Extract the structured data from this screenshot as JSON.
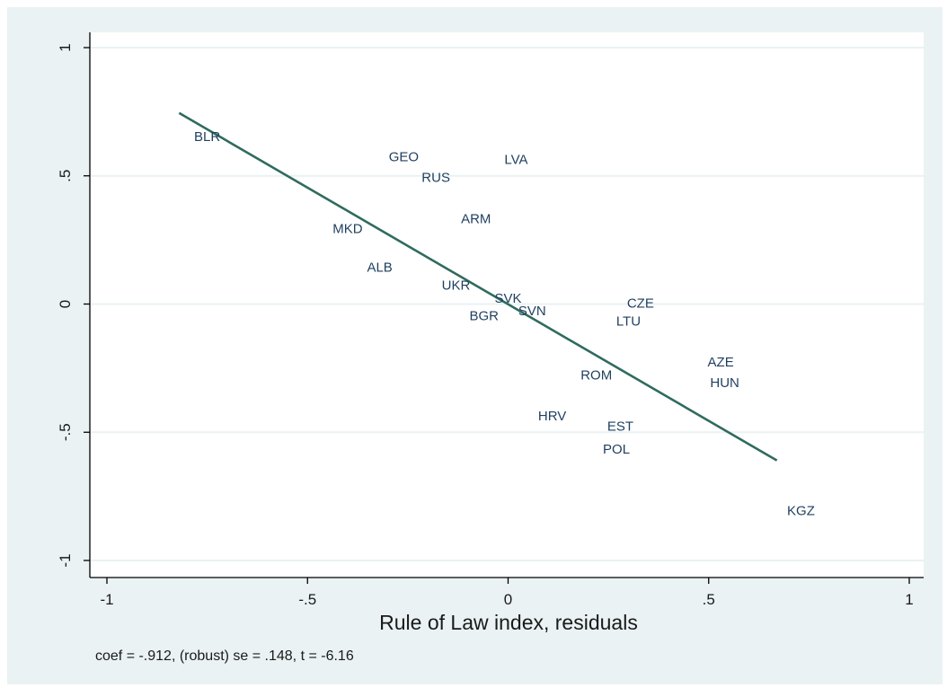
{
  "colors": {
    "background": "#eaf2f3",
    "plot_background": "#ffffff",
    "line": "#2f6b5e",
    "labels": "#1f3f5e",
    "grid": "#eaf2f3"
  },
  "chart_data": {
    "type": "scatter",
    "title": "",
    "xlabel": "Rule of Law index, residuals",
    "ylabel": "",
    "note": "coef = -.912, (robust) se = .148, t = -6.16",
    "xlim": [
      -1,
      1
    ],
    "ylim": [
      -1,
      1
    ],
    "xticks": [
      -1,
      -0.5,
      0,
      0.5,
      1
    ],
    "xtick_labels": [
      "-1",
      "-.5",
      "0",
      ".5",
      "1"
    ],
    "yticks": [
      -1,
      -0.5,
      0,
      0.5,
      1
    ],
    "ytick_labels": [
      "-1",
      "-.5",
      "0",
      ".5",
      "1"
    ],
    "grid": true,
    "points": [
      {
        "label": "BLR",
        "x": -0.75,
        "y": 0.65
      },
      {
        "label": "GEO",
        "x": -0.26,
        "y": 0.57
      },
      {
        "label": "LVA",
        "x": 0.02,
        "y": 0.56
      },
      {
        "label": "RUS",
        "x": -0.18,
        "y": 0.49
      },
      {
        "label": "ARM",
        "x": -0.08,
        "y": 0.33
      },
      {
        "label": "MKD",
        "x": -0.4,
        "y": 0.29
      },
      {
        "label": "ALB",
        "x": -0.32,
        "y": 0.14
      },
      {
        "label": "UKR",
        "x": -0.13,
        "y": 0.07
      },
      {
        "label": "SVK",
        "x": 0.0,
        "y": 0.02
      },
      {
        "label": "CZE",
        "x": 0.33,
        "y": 0.0
      },
      {
        "label": "SVN",
        "x": 0.06,
        "y": -0.03
      },
      {
        "label": "BGR",
        "x": -0.06,
        "y": -0.05
      },
      {
        "label": "LTU",
        "x": 0.3,
        "y": -0.07
      },
      {
        "label": "AZE",
        "x": 0.53,
        "y": -0.23
      },
      {
        "label": "ROM",
        "x": 0.22,
        "y": -0.28
      },
      {
        "label": "HUN",
        "x": 0.54,
        "y": -0.31
      },
      {
        "label": "HRV",
        "x": 0.11,
        "y": -0.44
      },
      {
        "label": "EST",
        "x": 0.28,
        "y": -0.48
      },
      {
        "label": "POL",
        "x": 0.27,
        "y": -0.57
      },
      {
        "label": "KGZ",
        "x": 0.73,
        "y": -0.81
      }
    ],
    "fit_line": {
      "x": [
        -0.82,
        0.67
      ],
      "y": [
        0.745,
        -0.61
      ]
    }
  }
}
